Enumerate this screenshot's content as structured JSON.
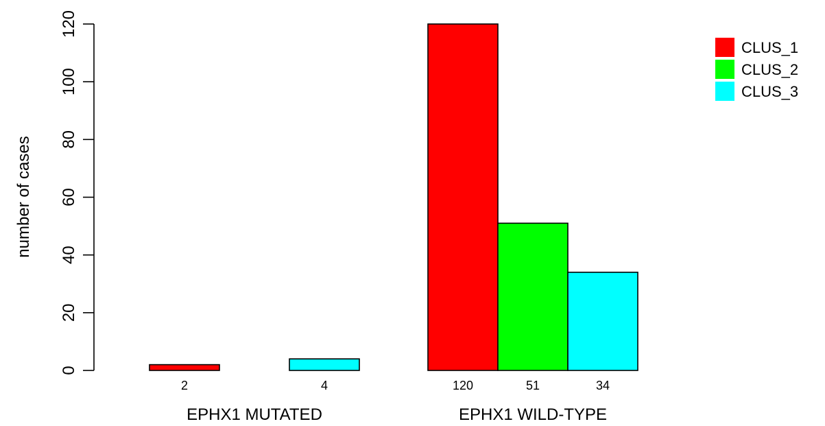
{
  "chart_data": {
    "type": "bar",
    "layout": "grouped",
    "title": "",
    "xlabel": "",
    "ylabel": "number of cases",
    "ylim": [
      0,
      120
    ],
    "yticks": [
      0,
      20,
      40,
      60,
      80,
      100,
      120
    ],
    "grid": false,
    "legend_position": "top-right",
    "groups": [
      "EPHX1 MUTATED",
      "EPHX1 WILD-TYPE"
    ],
    "series": [
      {
        "name": "CLUS_1",
        "color": "#ff0000",
        "values": [
          2,
          120
        ],
        "labels": [
          "2",
          "120"
        ]
      },
      {
        "name": "CLUS_2",
        "color": "#00ff00",
        "values": [
          0,
          51
        ],
        "labels": [
          "",
          "51"
        ]
      },
      {
        "name": "CLUS_3",
        "color": "#00ffff",
        "values": [
          4,
          34
        ],
        "labels": [
          "4",
          "34"
        ]
      }
    ]
  }
}
